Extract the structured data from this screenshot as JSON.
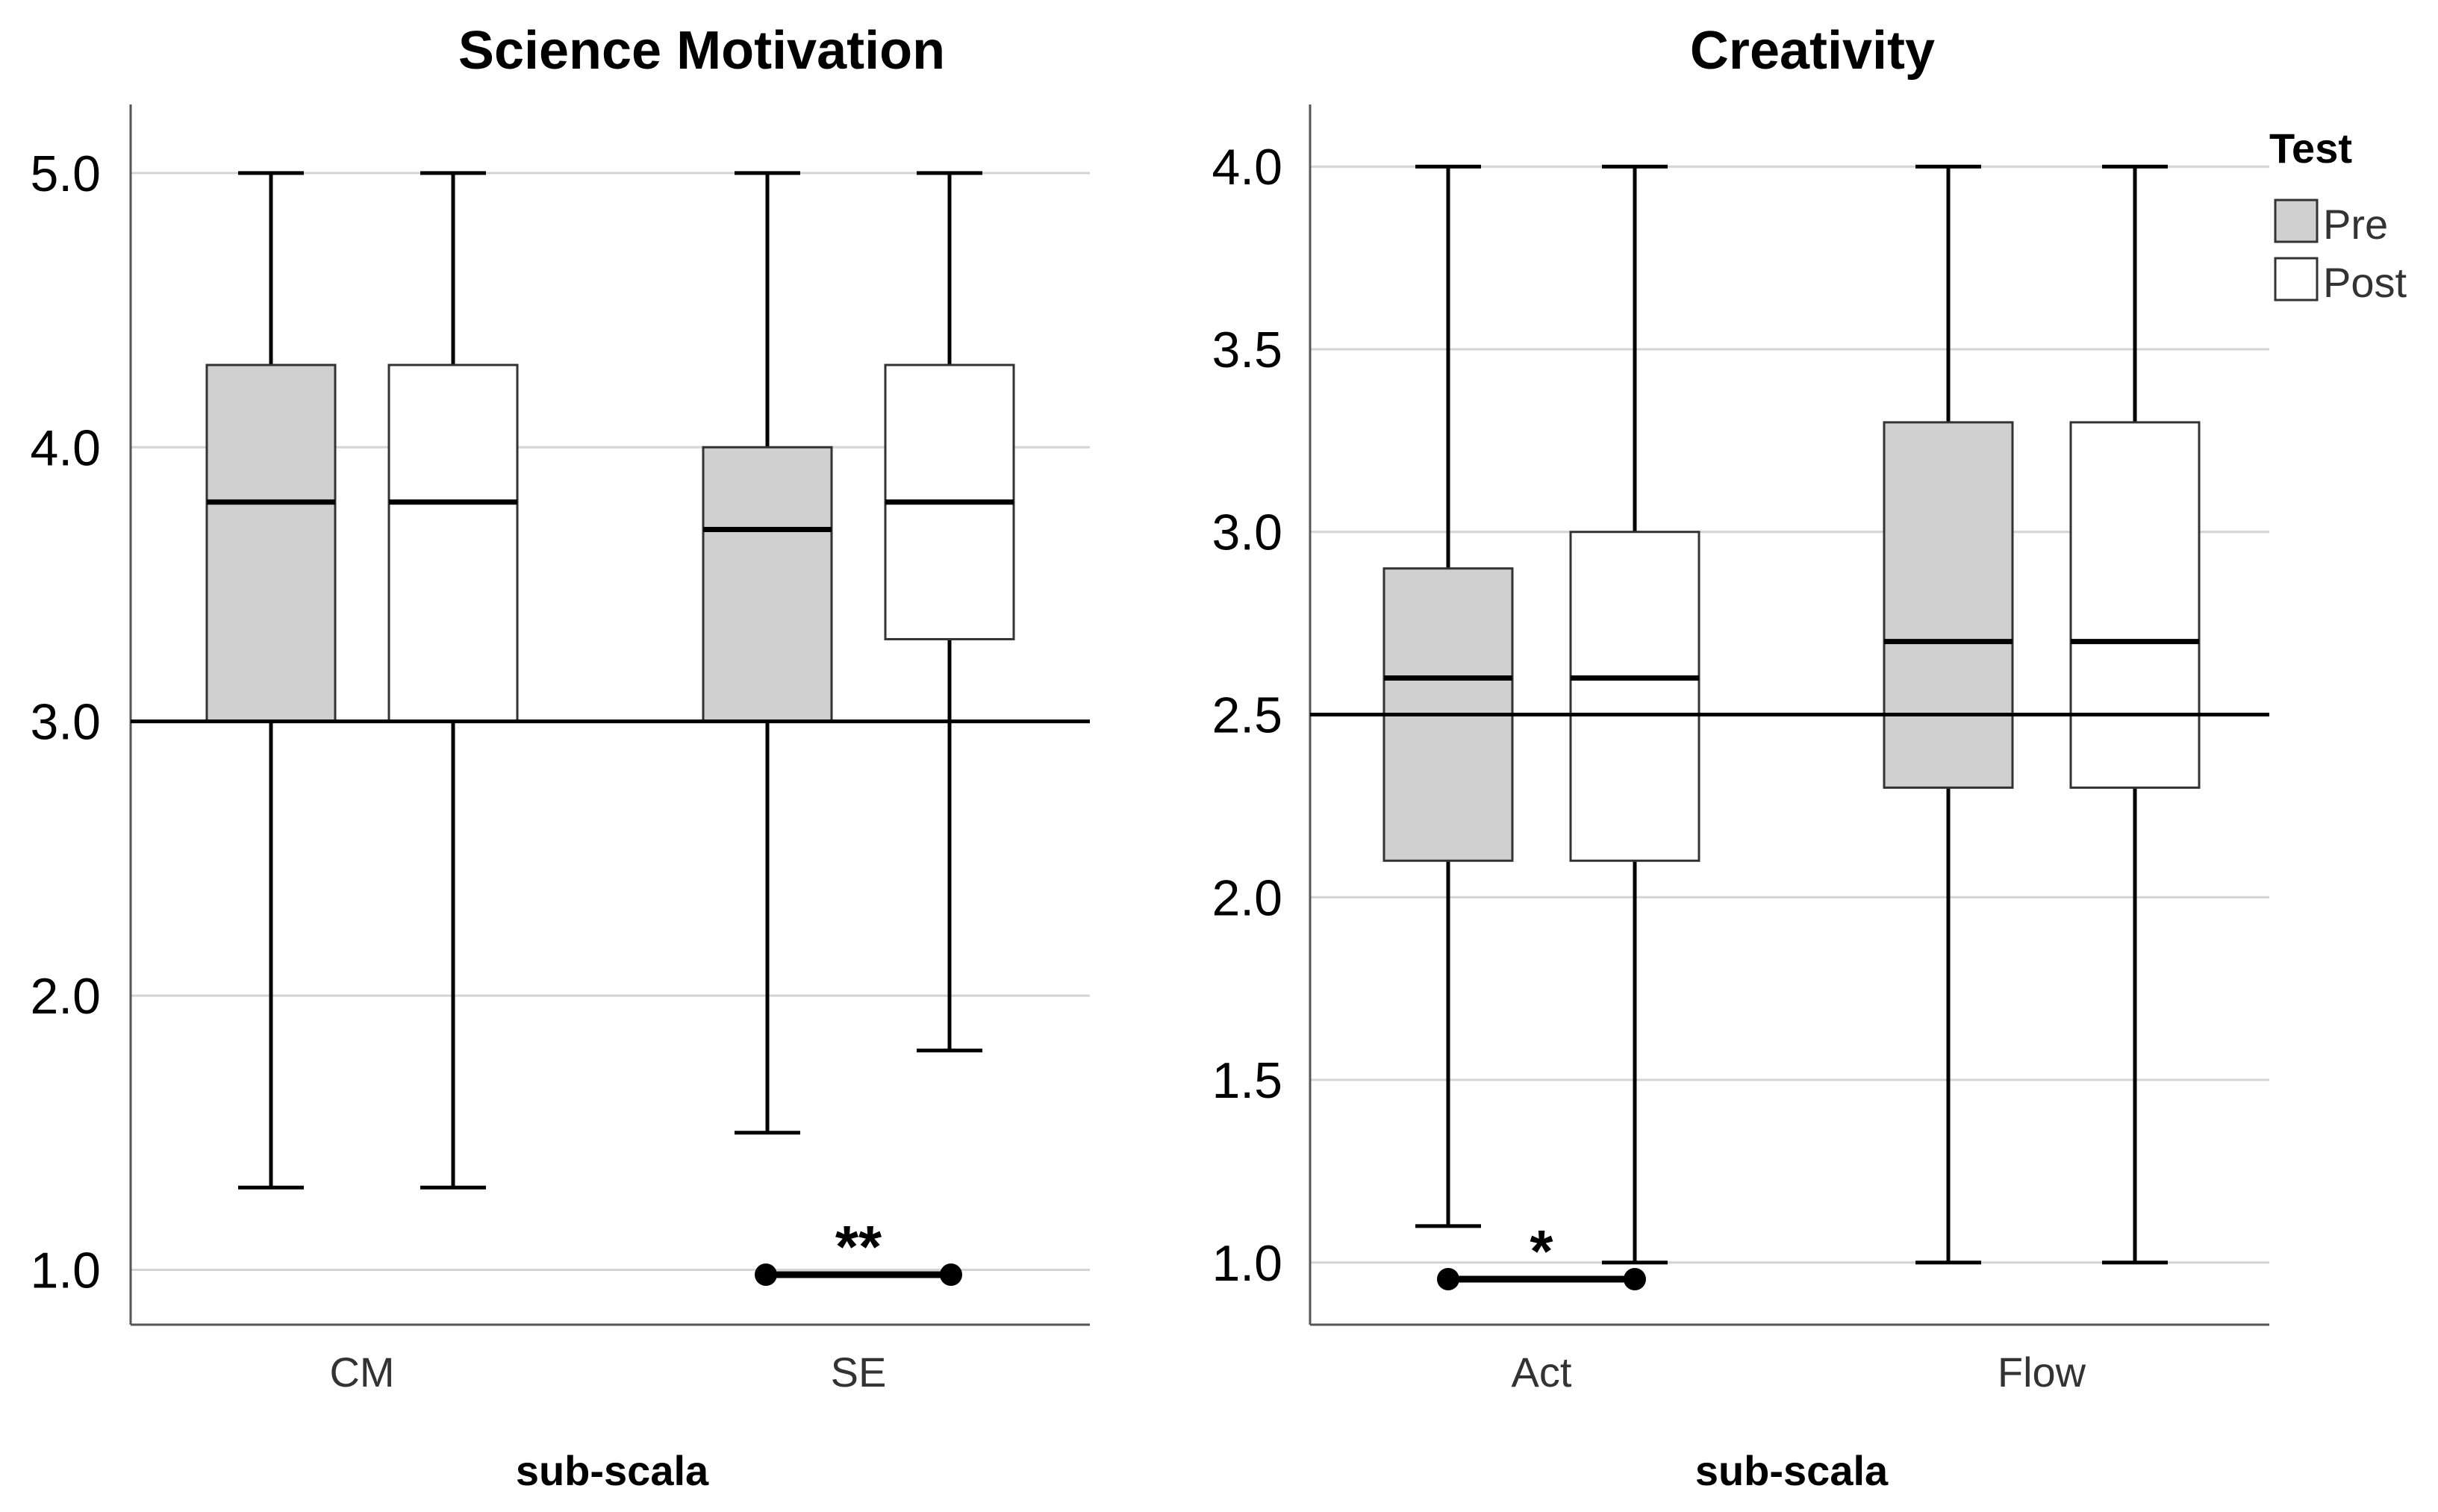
{
  "legend": {
    "title": "Test",
    "items": [
      {
        "label": "Pre",
        "color": "#d0d0d0"
      },
      {
        "label": "Post",
        "color": "#ffffff"
      }
    ]
  },
  "chart_data": [
    {
      "type": "boxplot",
      "title": "Science Motivation",
      "xlabel": "sub-scala",
      "ylabel": "",
      "ylim": [
        0.8,
        5.25
      ],
      "yticks": [
        "1.0",
        "2.0",
        "3.0",
        "4.0",
        "5.0"
      ],
      "reference_line": 3.0,
      "grid": "horizontal",
      "categories": [
        "CM",
        "SE"
      ],
      "series": [
        {
          "name": "Pre",
          "boxes": [
            {
              "category": "CM",
              "min": 1.3,
              "q1": 3.0,
              "median": 3.8,
              "q3": 4.3,
              "max": 5.0
            },
            {
              "category": "SE",
              "min": 1.5,
              "q1": 3.0,
              "median": 3.7,
              "q3": 4.0,
              "max": 5.0
            }
          ]
        },
        {
          "name": "Post",
          "boxes": [
            {
              "category": "CM",
              "min": 1.3,
              "q1": 3.0,
              "median": 3.8,
              "q3": 4.3,
              "max": 5.0
            },
            {
              "category": "SE",
              "min": 1.8,
              "q1": 3.3,
              "median": 3.8,
              "q3": 4.3,
              "max": 5.0
            }
          ]
        }
      ],
      "significance": [
        {
          "category": "SE",
          "label": "**"
        }
      ]
    },
    {
      "type": "boxplot",
      "title": "Creativity",
      "xlabel": "sub-scala",
      "ylabel": "",
      "ylim": [
        0.83,
        4.17
      ],
      "yticks": [
        "1.0",
        "1.5",
        "2.0",
        "2.5",
        "3.0",
        "3.5",
        "4.0"
      ],
      "reference_line": 2.5,
      "grid": "horizontal",
      "categories": [
        "Act",
        "Flow"
      ],
      "series": [
        {
          "name": "Pre",
          "boxes": [
            {
              "category": "Act",
              "min": 1.1,
              "q1": 2.1,
              "median": 2.6,
              "q3": 2.9,
              "max": 4.0
            },
            {
              "category": "Flow",
              "min": 1.0,
              "q1": 2.3,
              "median": 2.7,
              "q3": 3.3,
              "max": 4.0
            }
          ]
        },
        {
          "name": "Post",
          "boxes": [
            {
              "category": "Act",
              "min": 1.0,
              "q1": 2.1,
              "median": 2.6,
              "q3": 3.0,
              "max": 4.0
            },
            {
              "category": "Flow",
              "min": 1.0,
              "q1": 2.3,
              "median": 2.7,
              "q3": 3.3,
              "max": 4.0
            }
          ]
        }
      ],
      "significance": [
        {
          "category": "Act",
          "label": "*"
        }
      ]
    }
  ]
}
